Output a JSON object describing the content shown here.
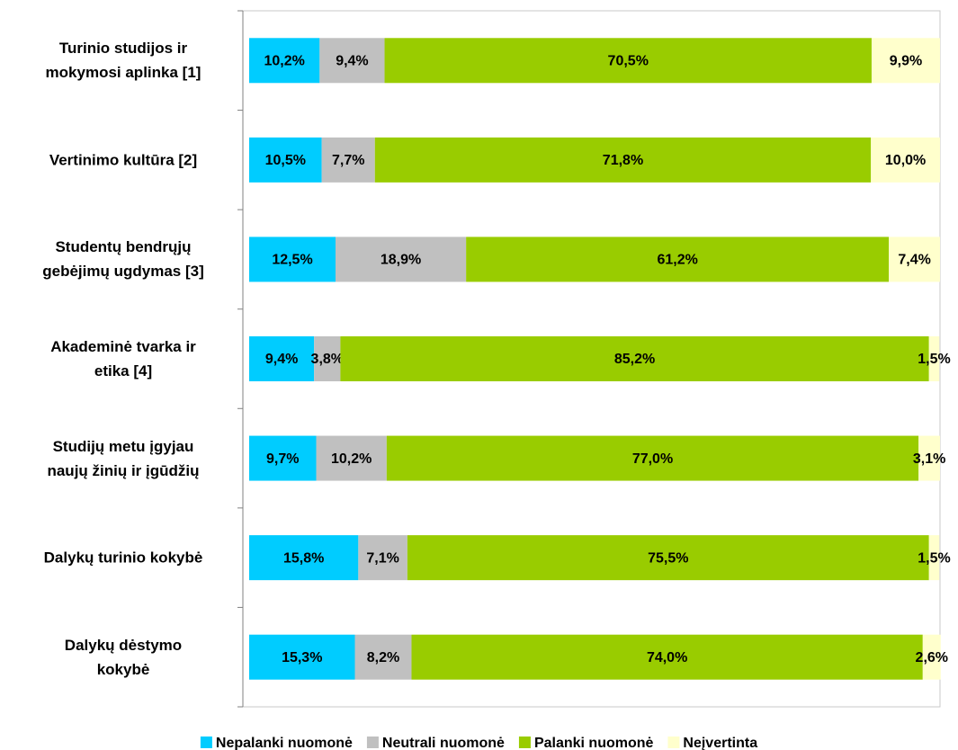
{
  "chart_data": {
    "type": "stacked_barh",
    "categories": [
      "Turinio studijos ir\nmokymosi aplinka [1]",
      "Vertinimo kultūra [2]",
      "Studentų bendrųjų\ngebėjimų ugdymas [3]",
      "Akademinė tvarka ir\netika [4]",
      "Studijų metu įgyjau\nnaujų žinių ir įgūdžių",
      "Dalykų turinio kokybė",
      "Dalykų dėstymo\nkokybė"
    ],
    "series": [
      {
        "name": "Nepalanki nuomonė",
        "color": "#00ccff",
        "values": [
          10.2,
          10.5,
          12.5,
          9.4,
          9.7,
          15.8,
          15.3
        ],
        "value_labels": [
          "10,2%",
          "10,5%",
          "12,5%",
          "9,4%",
          "9,7%",
          "15,8%",
          "15,3%"
        ]
      },
      {
        "name": "Neutrali nuomonė",
        "color": "#c0c0c0",
        "values": [
          9.4,
          7.7,
          18.9,
          3.8,
          10.2,
          7.1,
          8.2
        ],
        "value_labels": [
          "9,4%",
          "7,7%",
          "18,9%",
          "3,8%",
          "10,2%",
          "7,1%",
          "8,2%"
        ]
      },
      {
        "name": "Palanki nuomonė",
        "color": "#99cc00",
        "values": [
          70.5,
          71.8,
          61.2,
          85.2,
          77.0,
          75.5,
          74.0
        ],
        "value_labels": [
          "70,5%",
          "71,8%",
          "61,2%",
          "85,2%",
          "77,0%",
          "75,5%",
          "74,0%"
        ]
      },
      {
        "name": "Neįvertinta",
        "color": "#ffffcc",
        "values": [
          9.9,
          10.0,
          7.4,
          1.5,
          3.1,
          1.5,
          2.6
        ],
        "value_labels": [
          "9,9%",
          "10,0%",
          "7,4%",
          "1,5%",
          "3,1%",
          "1,5%",
          "2,6%"
        ]
      }
    ],
    "xlim": [
      0,
      100
    ]
  }
}
